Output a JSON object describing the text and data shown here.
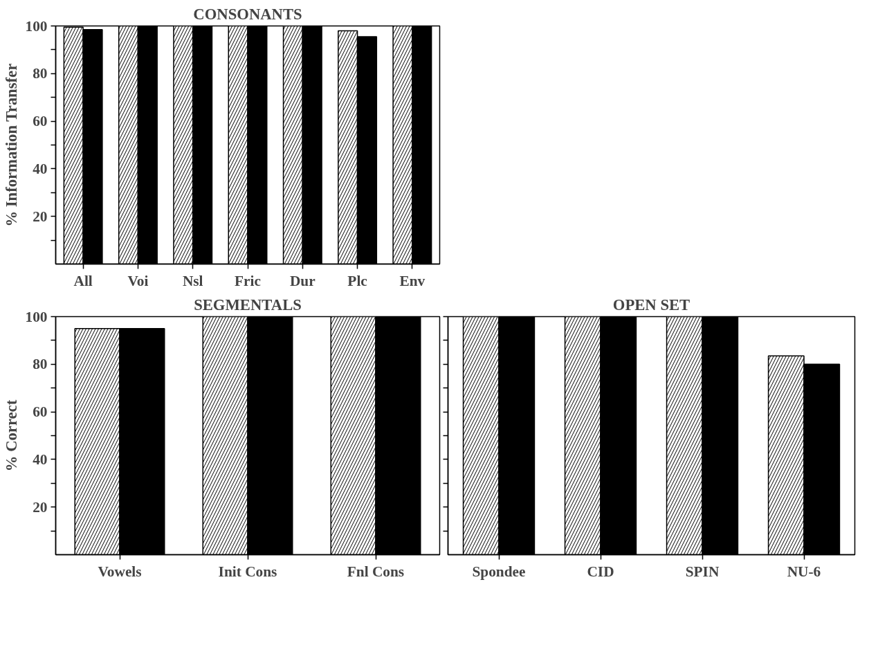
{
  "chart_data": [
    {
      "type": "bar",
      "title": "CONSONANTS",
      "ylabel": "% Information Transfer",
      "categories": [
        "All",
        "Voi",
        "Nsl",
        "Fric",
        "Dur",
        "Plc",
        "Env"
      ],
      "series": [
        {
          "color": "#ffffff",
          "values": [
            99.5,
            100,
            100,
            100,
            100,
            98,
            100
          ]
        },
        {
          "color": "#000000",
          "values": [
            98.5,
            100,
            100,
            100,
            100,
            95.5,
            100
          ]
        }
      ],
      "ylim": [
        0,
        100
      ],
      "yticks": [
        {
          "value": 10,
          "label": null
        },
        20,
        {
          "value": 30,
          "label": null
        },
        40,
        {
          "value": 50,
          "label": null
        },
        60,
        {
          "value": 70,
          "label": null
        },
        80,
        {
          "value": 90,
          "label": null
        },
        100
      ],
      "grid": false,
      "legend": false
    },
    {
      "type": "bar",
      "title": "SEGMENTALS",
      "ylabel": "% Correct",
      "categories": [
        "Vowels",
        "Init Cons",
        "Fnl Cons"
      ],
      "series": [
        {
          "color": "#ffffff",
          "values": [
            95,
            100,
            100
          ]
        },
        {
          "color": "#000000",
          "values": [
            95,
            100,
            100
          ]
        }
      ],
      "ylim": [
        0,
        100
      ],
      "yticks": [
        {
          "value": 10,
          "label": null
        },
        20,
        {
          "value": 30,
          "label": null
        },
        40,
        {
          "value": 50,
          "label": null
        },
        60,
        {
          "value": 70,
          "label": null
        },
        80,
        {
          "value": 90,
          "label": null
        },
        100
      ],
      "grid": false,
      "legend": false
    },
    {
      "type": "bar",
      "title": "OPEN SET",
      "categories": [
        "Spondee",
        "CID",
        "SPIN",
        "NU-6"
      ],
      "series": [
        {
          "color": "#ffffff",
          "values": [
            100,
            100,
            100,
            83.5
          ]
        },
        {
          "color": "#000000",
          "values": [
            100,
            100,
            100,
            80
          ]
        }
      ],
      "ylim": [
        0,
        100
      ],
      "yticks": [
        {
          "value": 10,
          "label": null
        },
        {
          "value": 20,
          "label": null
        },
        {
          "value": 30,
          "label": null
        },
        {
          "value": 40,
          "label": null
        },
        {
          "value": 50,
          "label": null
        },
        {
          "value": 60,
          "label": null
        },
        {
          "value": 70,
          "label": null
        },
        {
          "value": 80,
          "label": null
        },
        {
          "value": 90,
          "label": null
        },
        {
          "value": 100,
          "label": null
        }
      ],
      "tick_labels": "x",
      "grid": false,
      "legend": false
    }
  ]
}
